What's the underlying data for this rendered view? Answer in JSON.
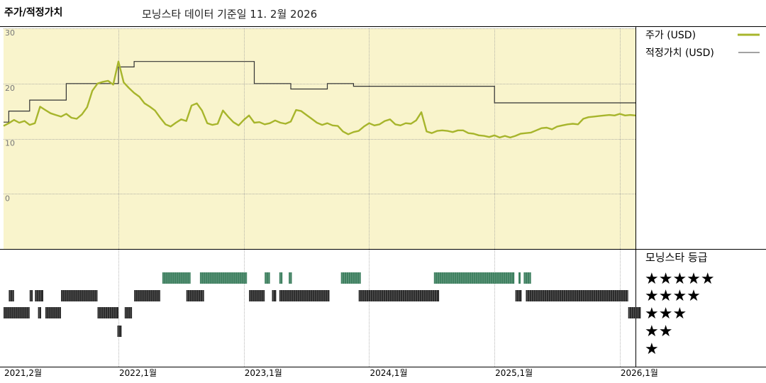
{
  "header": {
    "title": "주가/적정가치",
    "subtitle": "모닝스타 데이터 기준일 11. 2월 2026"
  },
  "colors": {
    "plot_bg": "#f9f4cc",
    "price_line": "#a7b52c",
    "fair_value_line": "#333333",
    "grid": "#999999",
    "rating_dark": "#2b2b2b",
    "rating_green": "#3d7f5f"
  },
  "chart_data": {
    "type": "line",
    "title": "주가/적정가치",
    "y_ticks": [
      "30",
      "20",
      "10",
      "0"
    ],
    "ylim": [
      -10,
      30
    ],
    "xlim": [
      "2021-02",
      "2026-02"
    ],
    "x_ticks": [
      {
        "label": "2021,2월",
        "t": 0.0
      },
      {
        "label": "2022,1월",
        "t": 11.0
      },
      {
        "label": "2023,1월",
        "t": 23.0
      },
      {
        "label": "2024,1월",
        "t": 35.0
      },
      {
        "label": "2025,1월",
        "t": 47.0
      },
      {
        "label": "2026,1월",
        "t": 59.0
      }
    ],
    "legend": [
      "주가 (USD)",
      "적정가치 (USD)"
    ],
    "series": [
      {
        "name": "주가 (USD)",
        "points": [
          [
            0.0,
            12.3
          ],
          [
            0.5,
            12.8
          ],
          [
            1.0,
            13.4
          ],
          [
            1.5,
            12.9
          ],
          [
            2.0,
            13.2
          ],
          [
            2.5,
            12.5
          ],
          [
            3.0,
            12.8
          ],
          [
            3.5,
            15.8
          ],
          [
            4.0,
            15.2
          ],
          [
            4.5,
            14.6
          ],
          [
            5.0,
            14.3
          ],
          [
            5.5,
            14.0
          ],
          [
            6.0,
            14.5
          ],
          [
            6.5,
            13.8
          ],
          [
            7.0,
            13.6
          ],
          [
            7.5,
            14.4
          ],
          [
            8.0,
            15.7
          ],
          [
            8.5,
            18.7
          ],
          [
            9.0,
            20.0
          ],
          [
            9.5,
            20.3
          ],
          [
            10.0,
            20.5
          ],
          [
            10.5,
            19.8
          ],
          [
            11.0,
            24.0
          ],
          [
            11.5,
            20.2
          ],
          [
            12.0,
            19.2
          ],
          [
            12.5,
            18.3
          ],
          [
            13.0,
            17.6
          ],
          [
            13.5,
            16.4
          ],
          [
            14.0,
            15.8
          ],
          [
            14.5,
            15.1
          ],
          [
            15.0,
            13.8
          ],
          [
            15.5,
            12.6
          ],
          [
            16.0,
            12.2
          ],
          [
            16.5,
            12.9
          ],
          [
            17.0,
            13.5
          ],
          [
            17.5,
            13.2
          ],
          [
            18.0,
            16.0
          ],
          [
            18.5,
            16.4
          ],
          [
            19.0,
            15.1
          ],
          [
            19.5,
            12.8
          ],
          [
            20.0,
            12.5
          ],
          [
            20.5,
            12.7
          ],
          [
            21.0,
            15.1
          ],
          [
            21.5,
            14.0
          ],
          [
            22.0,
            13.0
          ],
          [
            22.5,
            12.4
          ],
          [
            23.0,
            13.4
          ],
          [
            23.5,
            14.2
          ],
          [
            24.0,
            12.9
          ],
          [
            24.5,
            13.0
          ],
          [
            25.0,
            12.6
          ],
          [
            25.5,
            12.8
          ],
          [
            26.0,
            13.3
          ],
          [
            26.5,
            12.9
          ],
          [
            27.0,
            12.7
          ],
          [
            27.5,
            13.1
          ],
          [
            28.0,
            15.2
          ],
          [
            28.5,
            15.0
          ],
          [
            29.0,
            14.3
          ],
          [
            29.5,
            13.6
          ],
          [
            30.0,
            12.9
          ],
          [
            30.5,
            12.5
          ],
          [
            31.0,
            12.8
          ],
          [
            31.5,
            12.4
          ],
          [
            32.0,
            12.3
          ],
          [
            32.5,
            11.3
          ],
          [
            33.0,
            10.8
          ],
          [
            33.5,
            11.2
          ],
          [
            34.0,
            11.4
          ],
          [
            34.5,
            12.2
          ],
          [
            35.0,
            12.8
          ],
          [
            35.5,
            12.4
          ],
          [
            36.0,
            12.6
          ],
          [
            36.5,
            13.2
          ],
          [
            37.0,
            13.5
          ],
          [
            37.5,
            12.6
          ],
          [
            38.0,
            12.4
          ],
          [
            38.5,
            12.8
          ],
          [
            39.0,
            12.7
          ],
          [
            39.5,
            13.3
          ],
          [
            40.0,
            14.8
          ],
          [
            40.5,
            11.3
          ],
          [
            41.0,
            11.0
          ],
          [
            41.5,
            11.4
          ],
          [
            42.0,
            11.5
          ],
          [
            42.5,
            11.4
          ],
          [
            43.0,
            11.2
          ],
          [
            43.5,
            11.5
          ],
          [
            44.0,
            11.5
          ],
          [
            44.5,
            11.0
          ],
          [
            45.0,
            10.9
          ],
          [
            45.5,
            10.6
          ],
          [
            46.0,
            10.5
          ],
          [
            46.5,
            10.3
          ],
          [
            47.0,
            10.6
          ],
          [
            47.5,
            10.2
          ],
          [
            48.0,
            10.5
          ],
          [
            48.5,
            10.2
          ],
          [
            49.0,
            10.5
          ],
          [
            49.5,
            10.9
          ],
          [
            50.0,
            11.0
          ],
          [
            50.5,
            11.1
          ],
          [
            51.0,
            11.5
          ],
          [
            51.5,
            11.9
          ],
          [
            52.0,
            12.0
          ],
          [
            52.5,
            11.7
          ],
          [
            53.0,
            12.2
          ],
          [
            53.5,
            12.4
          ],
          [
            54.0,
            12.6
          ],
          [
            54.5,
            12.7
          ],
          [
            55.0,
            12.6
          ],
          [
            55.5,
            13.6
          ],
          [
            56.0,
            13.9
          ],
          [
            56.5,
            14.0
          ],
          [
            57.0,
            14.1
          ],
          [
            57.5,
            14.2
          ],
          [
            58.0,
            14.3
          ],
          [
            58.5,
            14.2
          ],
          [
            59.0,
            14.5
          ],
          [
            59.5,
            14.2
          ],
          [
            60.0,
            14.3
          ],
          [
            60.5,
            14.2
          ]
        ]
      },
      {
        "name": "적정가치 (USD)",
        "steps": [
          [
            0.0,
            13.0
          ],
          [
            0.5,
            15.0
          ],
          [
            2.5,
            17.0
          ],
          [
            6.0,
            20.0
          ],
          [
            11.0,
            23.0
          ],
          [
            12.5,
            24.0
          ],
          [
            24.0,
            20.0
          ],
          [
            27.5,
            19.0
          ],
          [
            31.0,
            20.0
          ],
          [
            33.5,
            19.5
          ],
          [
            47.0,
            16.5
          ],
          [
            60.5,
            16.5
          ]
        ]
      }
    ]
  },
  "ratings": {
    "title": "모닝스타 등급",
    "levels": [
      {
        "stars": "★★★★★",
        "segments": [
          [
            15.2,
            17.9
          ],
          [
            18.8,
            23.3
          ],
          [
            25.0,
            25.5
          ],
          [
            26.4,
            26.7
          ],
          [
            27.3,
            27.6
          ],
          [
            32.3,
            34.2
          ],
          [
            41.2,
            48.9
          ],
          [
            49.3,
            49.5
          ],
          [
            49.8,
            50.5
          ]
        ]
      },
      {
        "stars": "★★★★",
        "segments": [
          [
            0.5,
            1.0
          ],
          [
            2.5,
            2.8
          ],
          [
            3.0,
            3.8
          ],
          [
            5.5,
            9.0
          ],
          [
            12.5,
            15.0
          ],
          [
            17.5,
            19.2
          ],
          [
            23.5,
            25.0
          ],
          [
            25.7,
            26.1
          ],
          [
            26.4,
            31.2
          ],
          [
            34.0,
            41.7
          ],
          [
            49.0,
            49.6
          ],
          [
            50.0,
            59.8
          ]
        ]
      },
      {
        "stars": "★★★",
        "segments": [
          [
            0.0,
            2.5
          ],
          [
            3.3,
            3.6
          ],
          [
            4.0,
            5.5
          ],
          [
            9.0,
            11.0
          ],
          [
            11.6,
            12.3
          ],
          [
            59.8,
            61.0
          ]
        ]
      },
      {
        "stars": "★★",
        "segments": [
          [
            10.9,
            11.3
          ]
        ]
      },
      {
        "stars": "★",
        "segments": []
      }
    ]
  }
}
